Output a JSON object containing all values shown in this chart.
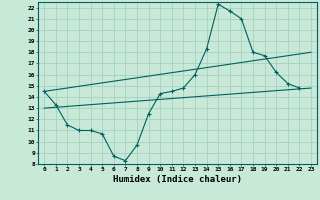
{
  "xlabel": "Humidex (Indice chaleur)",
  "background_color": "#c8e8d8",
  "line_color": "#006060",
  "grid_color": "#a0ccbc",
  "xlim": [
    -0.5,
    23.5
  ],
  "ylim": [
    8,
    22.5
  ],
  "xticks": [
    0,
    1,
    2,
    3,
    4,
    5,
    6,
    7,
    8,
    9,
    10,
    11,
    12,
    13,
    14,
    15,
    16,
    17,
    18,
    19,
    20,
    21,
    22,
    23
  ],
  "yticks": [
    8,
    9,
    10,
    11,
    12,
    13,
    14,
    15,
    16,
    17,
    18,
    19,
    20,
    21,
    22
  ],
  "line1_x": [
    0,
    1,
    2,
    3,
    4,
    5,
    6,
    7,
    8,
    9,
    10,
    11,
    12,
    13,
    14,
    15,
    16,
    17,
    18,
    19,
    20,
    21,
    22
  ],
  "line1_y": [
    14.5,
    13.3,
    11.5,
    11.0,
    11.0,
    10.7,
    8.7,
    8.3,
    9.7,
    12.5,
    14.3,
    14.5,
    14.8,
    16.0,
    18.3,
    22.3,
    21.7,
    21.0,
    18.0,
    17.7,
    16.2,
    15.2,
    14.8
  ],
  "line2_x": [
    0,
    23
  ],
  "line2_y": [
    13.0,
    14.8
  ],
  "line3_x": [
    0,
    23
  ],
  "line3_y": [
    14.5,
    18.0
  ]
}
